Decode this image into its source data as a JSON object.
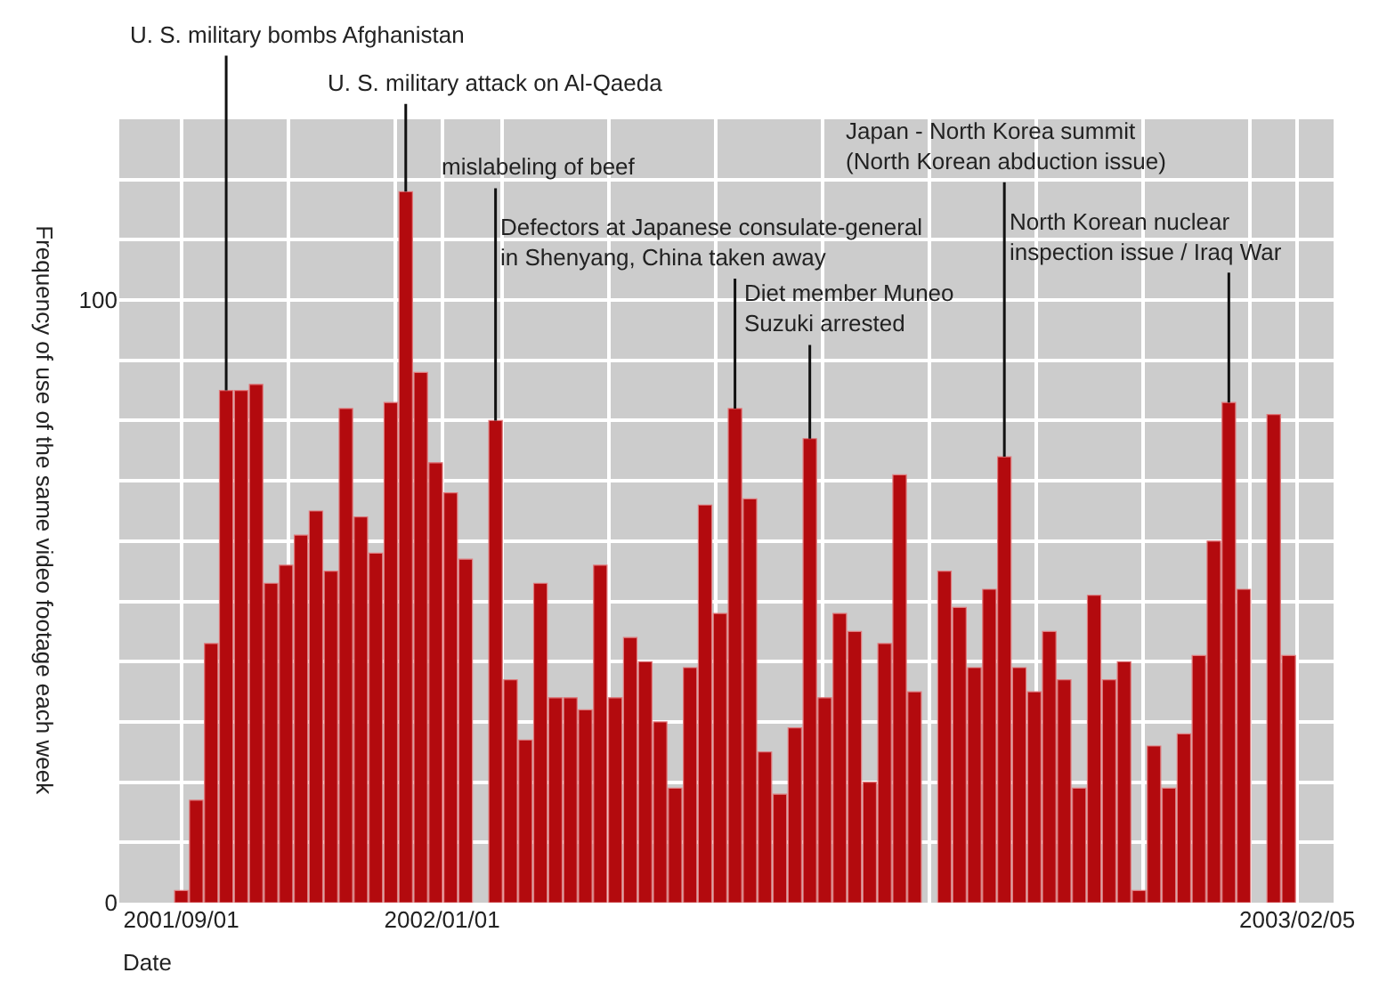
{
  "chart_data": {
    "type": "bar",
    "xlabel": "Date",
    "ylabel": "Frequency of use of the same video footage each week",
    "x": [
      "2001-09-01",
      "2001-09-08",
      "2001-09-15",
      "2001-09-22",
      "2001-09-29",
      "2001-10-06",
      "2001-10-13",
      "2001-10-20",
      "2001-10-27",
      "2001-11-03",
      "2001-11-10",
      "2001-11-17",
      "2001-11-24",
      "2001-12-01",
      "2001-12-08",
      "2001-12-15",
      "2001-12-22",
      "2001-12-29",
      "2002-01-05",
      "2002-01-12",
      "2002-01-19",
      "2002-01-26",
      "2002-02-02",
      "2002-02-09",
      "2002-02-16",
      "2002-02-23",
      "2002-03-02",
      "2002-03-09",
      "2002-03-16",
      "2002-03-23",
      "2002-03-30",
      "2002-04-06",
      "2002-04-13",
      "2002-04-20",
      "2002-04-27",
      "2002-05-04",
      "2002-05-11",
      "2002-05-18",
      "2002-05-25",
      "2002-06-01",
      "2002-06-08",
      "2002-06-15",
      "2002-06-22",
      "2002-06-29",
      "2002-07-06",
      "2002-07-13",
      "2002-07-20",
      "2002-07-27",
      "2002-08-03",
      "2002-08-10",
      "2002-08-17",
      "2002-08-24",
      "2002-08-31",
      "2002-09-07",
      "2002-09-14",
      "2002-09-21",
      "2002-09-28",
      "2002-10-05",
      "2002-10-12",
      "2002-10-19",
      "2002-10-26",
      "2002-11-02",
      "2002-11-09",
      "2002-11-16",
      "2002-11-23",
      "2002-11-30",
      "2002-12-07",
      "2002-12-14",
      "2002-12-21",
      "2002-12-28",
      "2003-01-04",
      "2003-01-11",
      "2003-01-18",
      "2003-01-25",
      "2003-02-01"
    ],
    "values": [
      2,
      17,
      43,
      85,
      85,
      86,
      53,
      56,
      61,
      65,
      55,
      82,
      64,
      58,
      83,
      118,
      88,
      73,
      68,
      57,
      null,
      80,
      37,
      27,
      53,
      34,
      34,
      32,
      56,
      34,
      44,
      40,
      30,
      19,
      39,
      66,
      48,
      82,
      67,
      25,
      18,
      29,
      77,
      34,
      48,
      45,
      20,
      43,
      71,
      35,
      null,
      55,
      49,
      39,
      52,
      74,
      39,
      35,
      45,
      37,
      19,
      51,
      37,
      40,
      2,
      26,
      19,
      28,
      41,
      60,
      83,
      52,
      null,
      81,
      41
    ],
    "color": "#b30a0e",
    "xlim": [
      "2001-08-03",
      "2003-02-22"
    ],
    "xticks": [
      {
        "value": "2001-09-01",
        "label": "2001/09/01"
      },
      {
        "value": "2001-10-21",
        "label": null
      },
      {
        "value": "2001-12-10",
        "label": null
      },
      {
        "value": "2002-01-01",
        "label": "2002/01/01"
      },
      {
        "value": "2002-01-29",
        "label": null
      },
      {
        "value": "2002-03-20",
        "label": null
      },
      {
        "value": "2002-05-09",
        "label": null
      },
      {
        "value": "2002-06-28",
        "label": null
      },
      {
        "value": "2002-08-17",
        "label": null
      },
      {
        "value": "2002-10-06",
        "label": null
      },
      {
        "value": "2002-11-25",
        "label": null
      },
      {
        "value": "2003-01-14",
        "label": null
      },
      {
        "value": "2003-02-05",
        "label": "2003/02/05"
      }
    ],
    "ylim": [
      0,
      130
    ],
    "yticks": [
      0,
      {
        "value": 10,
        "label": null
      },
      {
        "value": 20,
        "label": null
      },
      {
        "value": 30,
        "label": null
      },
      {
        "value": 40,
        "label": null
      },
      {
        "value": 50,
        "label": null
      },
      {
        "value": 60,
        "label": null
      },
      {
        "value": 70,
        "label": null
      },
      {
        "value": 80,
        "label": null
      },
      {
        "value": 90,
        "label": null
      },
      100,
      {
        "value": 110,
        "label": null
      },
      {
        "value": 120,
        "label": null
      },
      {
        "value": 130,
        "label": null
      }
    ],
    "grid": true,
    "legend": false,
    "annotations": [
      {
        "text": "U. S. military bombs Afghanistan",
        "x": "2001-09-22",
        "y": 85
      },
      {
        "text": "U. S. military attack on Al-Qaeda",
        "x": "2001-12-15",
        "y": 118
      },
      {
        "text": "mislabeling of beef",
        "x": "2002-01-26",
        "y": 80
      },
      {
        "text": "Defectors at Japanese consulate-general\nin Shenyang, China taken away",
        "x": "2002-05-18",
        "y": 82
      },
      {
        "text": "Diet member Muneo\nSuzuki arrested",
        "x": "2002-06-22",
        "y": 77
      },
      {
        "text": "Japan - North Korea summit\n(North Korean abduction issue)",
        "x": "2002-09-21",
        "y": 74
      },
      {
        "text": "North Korean nuclear\ninspection issue / Iraq War",
        "x": "2003-01-04",
        "y": 83
      }
    ]
  }
}
